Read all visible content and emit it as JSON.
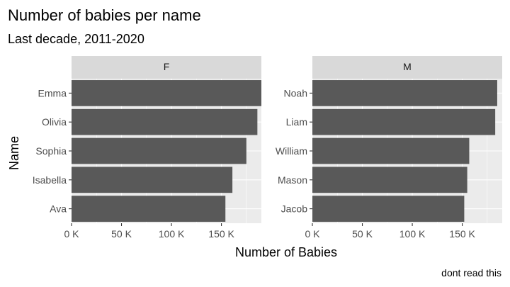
{
  "chart_data": {
    "type": "bar",
    "orientation": "horizontal",
    "title": "Number of babies per name",
    "subtitle": "Last decade, 2011-2020",
    "xlabel": "Number of Babies",
    "ylabel": "Name",
    "caption": "dont read this",
    "xlim": [
      0,
      190000
    ],
    "x_ticks": [
      0,
      50000,
      100000,
      150000
    ],
    "x_tick_labels": [
      "0 K",
      "50 K",
      "100 K",
      "150 K"
    ],
    "grid": true,
    "legend": "none",
    "bar_color": "#595959",
    "facets": [
      {
        "label": "F",
        "categories": [
          "Emma",
          "Olivia",
          "Sophia",
          "Isabella",
          "Ava"
        ],
        "values": [
          194000,
          186000,
          175000,
          161000,
          154000
        ]
      },
      {
        "label": "M",
        "categories": [
          "Noah",
          "Liam",
          "William",
          "Mason",
          "Jacob"
        ],
        "values": [
          185000,
          183000,
          157000,
          155000,
          152000
        ]
      }
    ]
  }
}
